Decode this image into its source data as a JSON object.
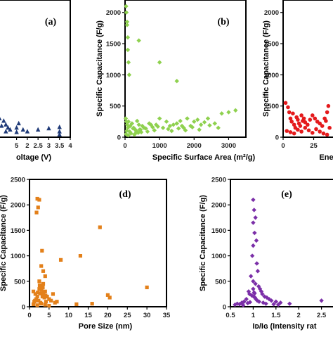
{
  "chart_data": [
    {
      "panel": "a",
      "type": "scatter",
      "panel_label": "(a)",
      "xlabel": "oltage (V)",
      "ylabel": "",
      "xlim": [
        0.4,
        4
      ],
      "ylim": [
        0,
        2200
      ],
      "x_ticks": [
        "5",
        "2",
        "2.5",
        "3",
        "3.5",
        "4"
      ],
      "x_tick_values": [
        1.5,
        2,
        2.5,
        3,
        3.5,
        4
      ],
      "marker": "triangle",
      "color": "#1f3a78",
      "series": [
        {
          "x": [
            0.5,
            0.55,
            0.6,
            0.7,
            0.8,
            0.9,
            1.0,
            1.0,
            1.1,
            1.2,
            1.5,
            1.5,
            1.6,
            1.8,
            2.0,
            2.5,
            3.0,
            3.5,
            3.5,
            3.5
          ],
          "y": [
            80,
            150,
            220,
            300,
            180,
            260,
            90,
            200,
            150,
            120,
            80,
            150,
            220,
            120,
            90,
            120,
            140,
            160,
            90,
            40
          ]
        }
      ]
    },
    {
      "panel": "b",
      "type": "scatter",
      "panel_label": "(b)",
      "xlabel": "Specific Surface Area (m²/g)",
      "ylabel": "Specific Capacitance (F/g)",
      "xlim": [
        0,
        3500
      ],
      "ylim": [
        0,
        2200
      ],
      "x_ticks": [
        "0",
        "1000",
        "2000",
        "3000"
      ],
      "x_tick_values": [
        0,
        1000,
        2000,
        3000
      ],
      "y_ticks": [
        "0",
        "500",
        "1000",
        "1500",
        "2000"
      ],
      "y_tick_values": [
        0,
        500,
        1000,
        1500,
        2000
      ],
      "marker": "diamond",
      "color": "#8fd14f",
      "series": [
        {
          "x": [
            30,
            40,
            60,
            80,
            100,
            120,
            60,
            80,
            400,
            1000,
            1500,
            20,
            40,
            60,
            80,
            100,
            150,
            200,
            250,
            300,
            350,
            400,
            500,
            600,
            700,
            800,
            900,
            1000,
            1100,
            1200,
            1300,
            1400,
            1500,
            1600,
            1700,
            1800,
            1900,
            2000,
            2100,
            2200,
            2300,
            2400,
            2600,
            2800,
            3000,
            3200,
            50,
            150,
            300,
            450,
            550,
            650,
            750,
            850,
            950,
            1250,
            1350,
            1550,
            1650,
            1750,
            1950,
            2150,
            2450,
            2700,
            30,
            90,
            130,
            170,
            230,
            270,
            320,
            380,
            420,
            470
          ],
          "y": [
            2100,
            2000,
            1800,
            1400,
            1200,
            1000,
            1850,
            1600,
            1550,
            1200,
            900,
            300,
            250,
            200,
            150,
            250,
            180,
            220,
            150,
            120,
            260,
            200,
            180,
            140,
            220,
            160,
            200,
            300,
            150,
            250,
            180,
            200,
            220,
            260,
            150,
            300,
            180,
            250,
            280,
            200,
            240,
            300,
            220,
            380,
            400,
            430,
            100,
            80,
            60,
            120,
            150,
            90,
            200,
            110,
            170,
            130,
            100,
            140,
            180,
            110,
            160,
            120,
            190,
            150,
            50,
            30,
            90,
            60,
            140,
            40,
            100,
            70,
            120,
            80
          ]
        }
      ]
    },
    {
      "panel": "c",
      "type": "scatter",
      "panel_label": "",
      "xlabel": "Energ",
      "ylabel": "Specific Capacitance (F/g)",
      "xlim": [
        0,
        50
      ],
      "ylim": [
        0,
        2200
      ],
      "x_ticks": [
        "0",
        "25"
      ],
      "x_tick_values": [
        0,
        25
      ],
      "y_ticks": [
        "0",
        "500",
        "1000",
        "1500",
        "2000"
      ],
      "y_tick_values": [
        0,
        500,
        1000,
        1500,
        2000
      ],
      "marker": "circle",
      "color": "#e41a1c",
      "series": [
        {
          "x": [
            2,
            4,
            5,
            6,
            7,
            8,
            9,
            10,
            11,
            12,
            13,
            14,
            15,
            16,
            17,
            18,
            20,
            22,
            24,
            26,
            28,
            30,
            32,
            34,
            35,
            36,
            37,
            38,
            3,
            6,
            9,
            12,
            15,
            18,
            21,
            24,
            27,
            30,
            33,
            36
          ],
          "y": [
            550,
            480,
            400,
            300,
            250,
            380,
            200,
            150,
            320,
            280,
            220,
            180,
            350,
            260,
            300,
            240,
            200,
            280,
            350,
            300,
            250,
            220,
            180,
            300,
            260,
            400,
            500,
            150,
            100,
            80,
            60,
            120,
            90,
            150,
            110,
            70,
            130,
            90,
            60,
            40
          ]
        }
      ]
    },
    {
      "panel": "d",
      "type": "scatter",
      "panel_label": "(d)",
      "xlabel": "Pore Size (nm)",
      "ylabel": "Specific Capacitance (F/g)",
      "xlim": [
        0,
        35
      ],
      "ylim": [
        0,
        2500
      ],
      "x_ticks": [
        "0",
        "5",
        "10",
        "15",
        "20",
        "25",
        "30",
        "35"
      ],
      "x_tick_values": [
        0,
        5,
        10,
        15,
        20,
        25,
        30,
        35
      ],
      "y_ticks": [
        "0",
        "500",
        "1000",
        "1500",
        "2000",
        "2500"
      ],
      "y_tick_values": [
        0,
        500,
        1000,
        1500,
        2000,
        2500
      ],
      "marker": "square",
      "color": "#e3801a",
      "series": [
        {
          "x": [
            2,
            2.5,
            2.2,
            1.8,
            3.2,
            8,
            13,
            18,
            20,
            20.5,
            30,
            3,
            3.5,
            4,
            2.5,
            1,
            1.5,
            2,
            2.5,
            3,
            3.5,
            4,
            4.5,
            5,
            6,
            7,
            1.2,
            1.7,
            2.3,
            2.8,
            3.3,
            3.8,
            4.2,
            5.5,
            6.5,
            12,
            16,
            1,
            2,
            3,
            4,
            5,
            2.7,
            3.1,
            3.6,
            4.1,
            1.4,
            2.1,
            2.6,
            3.4
          ],
          "y": [
            2120,
            2100,
            1950,
            1850,
            1100,
            920,
            1000,
            1560,
            230,
            180,
            380,
            800,
            700,
            600,
            500,
            300,
            250,
            200,
            350,
            400,
            450,
            300,
            200,
            150,
            250,
            100,
            100,
            150,
            120,
            80,
            200,
            180,
            100,
            120,
            80,
            50,
            60,
            50,
            30,
            60,
            40,
            20,
            260,
            330,
            270,
            220,
            120,
            280,
            420,
            380
          ]
        }
      ]
    },
    {
      "panel": "e",
      "type": "scatter",
      "panel_label": "(e)",
      "xlabel": "Iᴅ/Iɢ (Intensity rat",
      "ylabel": "Specific Capacitance (F/g)",
      "xlim": [
        0.5,
        3
      ],
      "ylim": [
        0,
        2500
      ],
      "x_ticks": [
        "0.5",
        "1",
        "1.5",
        "2",
        "2.5"
      ],
      "x_tick_values": [
        0.5,
        1,
        1.5,
        2,
        2.5
      ],
      "y_ticks": [
        "0",
        "500",
        "1000",
        "1500",
        "2000",
        "2500"
      ],
      "y_tick_values": [
        0,
        500,
        1000,
        1500,
        2000,
        2500
      ],
      "marker": "diamond",
      "color": "#7b2fa8",
      "series": [
        {
          "x": [
            1.0,
            1.02,
            1.05,
            1.0,
            1.03,
            1.07,
            1.0,
            0.98,
            1.08,
            1.1,
            0.95,
            1.0,
            1.05,
            1.12,
            1.15,
            0.9,
            0.92,
            1.18,
            1.2,
            1.25,
            0.85,
            0.8,
            1.3,
            1.35,
            1.4,
            0.75,
            0.7,
            1.5,
            1.6,
            1.8,
            2.5,
            2.8,
            0.6,
            0.65,
            1.0,
            1.02,
            0.97,
            1.04,
            1.06,
            1.09,
            1.13,
            0.93,
            0.88,
            1.22,
            1.28,
            1.45,
            1.55,
            0.78,
            1.01,
            1.03
          ],
          "y": [
            2100,
            1900,
            1750,
            1650,
            1450,
            1300,
            1200,
            1000,
            850,
            700,
            600,
            500,
            450,
            400,
            350,
            300,
            250,
            300,
            250,
            200,
            150,
            100,
            180,
            150,
            120,
            80,
            50,
            100,
            80,
            60,
            120,
            100,
            40,
            60,
            350,
            280,
            220,
            180,
            150,
            120,
            100,
            90,
            70,
            80,
            60,
            50,
            40,
            30,
            200,
            260
          ]
        }
      ]
    }
  ]
}
